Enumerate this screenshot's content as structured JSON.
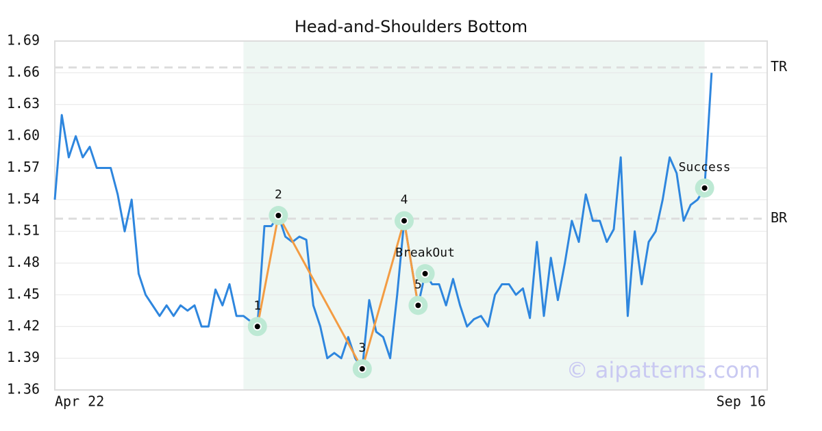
{
  "chart_data": {
    "type": "line",
    "title": "Head-and-Shoulders Bottom",
    "x_axis_labels": {
      "start": "Apr 22",
      "end": "Sep 16"
    },
    "series": [
      {
        "color": "#2e86de",
        "values": [
          1.54,
          1.62,
          1.58,
          1.6,
          1.58,
          1.59,
          1.57,
          1.57,
          1.57,
          1.545,
          1.51,
          1.54,
          1.47,
          1.45,
          1.44,
          1.43,
          1.44,
          1.43,
          1.44,
          1.435,
          1.44,
          1.42,
          1.42,
          1.455,
          1.44,
          1.46,
          1.43,
          1.43,
          1.425,
          1.42,
          1.515,
          1.515,
          1.525,
          1.505,
          1.5,
          1.505,
          1.502,
          1.44,
          1.42,
          1.39,
          1.395,
          1.39,
          1.41,
          1.39,
          1.38,
          1.445,
          1.415,
          1.41,
          1.39,
          1.45,
          1.52,
          1.48,
          1.44,
          1.47,
          1.46,
          1.46,
          1.44,
          1.465,
          1.44,
          1.42,
          1.427,
          1.43,
          1.42,
          1.45,
          1.46,
          1.46,
          1.45,
          1.456,
          1.428,
          1.5,
          1.43,
          1.485,
          1.445,
          1.48,
          1.52,
          1.5,
          1.545,
          1.52,
          1.52,
          1.5,
          1.512,
          1.58,
          1.43,
          1.51,
          1.46,
          1.5,
          1.51,
          1.54,
          1.58,
          1.565,
          1.52,
          1.535,
          1.54,
          1.551,
          1.66
        ]
      }
    ],
    "highlight_range": [
      27,
      93
    ],
    "highlight_color": "#eef7f3",
    "levels": [
      {
        "label": "TR",
        "value": 1.665
      },
      {
        "label": "BR",
        "value": 1.522
      }
    ],
    "pattern": {
      "color": "#f39c43",
      "points": [
        {
          "label": "1",
          "index": 29,
          "value": 1.42
        },
        {
          "label": "2",
          "index": 32,
          "value": 1.525
        },
        {
          "label": "3",
          "index": 44,
          "value": 1.38
        },
        {
          "label": "4",
          "index": 50,
          "value": 1.52
        },
        {
          "label": "5",
          "index": 52,
          "value": 1.44
        }
      ]
    },
    "events": [
      {
        "label": "BreakOut",
        "index": 53,
        "value": 1.47
      },
      {
        "label": "Success",
        "index": 93,
        "value": 1.551
      }
    ],
    "ylim": [
      1.36,
      1.69
    ],
    "yticks": [
      1.36,
      1.39,
      1.42,
      1.45,
      1.48,
      1.51,
      1.54,
      1.57,
      {
        "value": 1.6,
        "label": "1.60"
      },
      1.63,
      1.66,
      1.69
    ],
    "grid": true,
    "watermark": "© aipatterns.com"
  }
}
